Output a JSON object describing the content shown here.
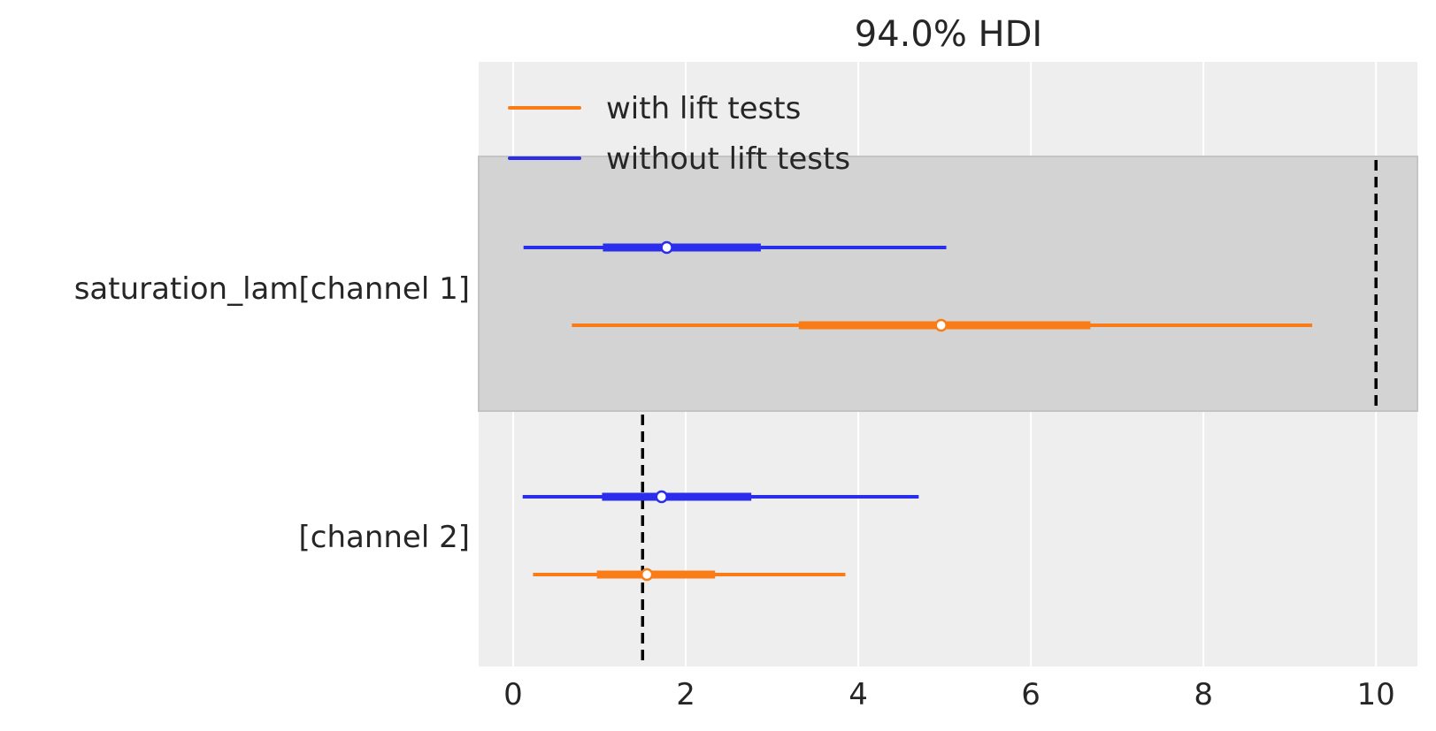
{
  "chart_data": {
    "type": "forest",
    "title": "94.0% HDI",
    "xlim": [
      -0.4,
      10.48
    ],
    "xticks": [
      0,
      2,
      4,
      6,
      8,
      10
    ],
    "grid": true,
    "legend_placement": "top-left",
    "rows": [
      {
        "label": "saturation_lam[channel 1]",
        "highlighted": true,
        "reference": 10
      },
      {
        "label": "[channel 2]",
        "highlighted": false,
        "reference": 1.5
      }
    ],
    "series": [
      {
        "name": "with lift tests",
        "color": "#fa7c17",
        "intervals": [
          {
            "hdi94": [
              0.68,
              9.26
            ],
            "iqr": [
              3.31,
              6.69
            ],
            "point": 4.96
          },
          {
            "hdi94": [
              0.23,
              3.85
            ],
            "iqr": [
              0.97,
              2.34
            ],
            "point": 1.55
          }
        ]
      },
      {
        "name": "without lift tests",
        "color": "#2a2eec",
        "intervals": [
          {
            "hdi94": [
              0.12,
              5.02
            ],
            "iqr": [
              1.04,
              2.87
            ],
            "point": 1.78
          },
          {
            "hdi94": [
              0.11,
              4.7
            ],
            "iqr": [
              1.03,
              2.76
            ],
            "point": 1.72
          }
        ]
      }
    ]
  }
}
